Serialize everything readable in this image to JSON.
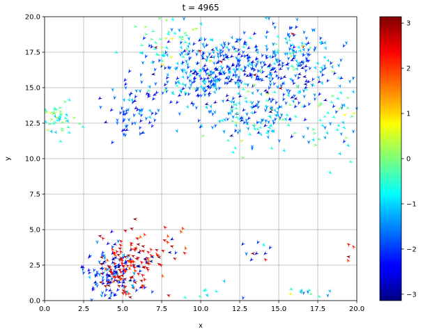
{
  "chart_data": {
    "type": "scatter",
    "title": "t = 4965",
    "xlabel": "x",
    "ylabel": "y",
    "xlim": [
      0,
      20
    ],
    "ylim": [
      0,
      20
    ],
    "grid": true,
    "x_ticks": [
      "0.0",
      "2.5",
      "5.0",
      "7.5",
      "10.0",
      "12.5",
      "15.0",
      "17.5",
      "20.0"
    ],
    "y_ticks": [
      "0.0",
      "2.5",
      "5.0",
      "7.5",
      "10.0",
      "12.5",
      "15.0",
      "17.5",
      "20.0"
    ],
    "colorbar": {
      "colormap": "jet",
      "range": [
        -3.14159,
        3.14159
      ],
      "ticks": [
        "−3",
        "−2",
        "−1",
        "0",
        "1",
        "2",
        "3"
      ],
      "tick_values": [
        -3,
        -2,
        -1,
        0,
        1,
        2,
        3
      ]
    },
    "clusters": [
      {
        "x": 0.9,
        "y": 12.8,
        "sx": 0.5,
        "sy": 0.6,
        "n": 45,
        "angle_mean": -0.4,
        "angle_spread": 0.6
      },
      {
        "x": 5.7,
        "y": 13.4,
        "sx": 0.7,
        "sy": 1.0,
        "n": 70,
        "angle_mean": -1.9,
        "angle_spread": 0.5
      },
      {
        "x": 11.2,
        "y": 16.0,
        "sx": 1.8,
        "sy": 1.3,
        "n": 300,
        "angle_mean": -1.8,
        "angle_spread": 0.6
      },
      {
        "x": 15.6,
        "y": 16.5,
        "sx": 1.6,
        "sy": 1.6,
        "n": 230,
        "angle_mean": -1.6,
        "angle_spread": 0.7
      },
      {
        "x": 13.8,
        "y": 12.8,
        "sx": 1.6,
        "sy": 1.0,
        "n": 120,
        "angle_mean": -1.1,
        "angle_spread": 0.8
      },
      {
        "x": 8.5,
        "y": 16.8,
        "sx": 1.5,
        "sy": 1.5,
        "n": 80,
        "angle_mean": -1.3,
        "angle_spread": 0.8
      },
      {
        "x": 18.8,
        "y": 13.0,
        "sx": 0.8,
        "sy": 1.5,
        "n": 45,
        "angle_mean": -1.0,
        "angle_spread": 0.7
      },
      {
        "x": 8.0,
        "y": 18.8,
        "sx": 1.0,
        "sy": 0.7,
        "n": 25,
        "angle_mean": -0.3,
        "angle_spread": 0.5
      },
      {
        "x": 4.5,
        "y": 1.9,
        "sx": 0.9,
        "sy": 0.9,
        "n": 150,
        "angle_mean": -2.1,
        "angle_spread": 0.7
      },
      {
        "x": 5.3,
        "y": 2.4,
        "sx": 1.0,
        "sy": 1.2,
        "n": 90,
        "angle_mean": 2.4,
        "angle_spread": 0.4
      },
      {
        "x": 7.3,
        "y": 3.6,
        "sx": 0.9,
        "sy": 0.8,
        "n": 35,
        "angle_mean": 2.5,
        "angle_spread": 0.6
      },
      {
        "x": 13.6,
        "y": 3.5,
        "sx": 0.5,
        "sy": 0.4,
        "n": 10,
        "angle_mean": -2.5,
        "angle_spread": 0.8
      },
      {
        "x": 16.8,
        "y": 0.4,
        "sx": 0.7,
        "sy": 0.3,
        "n": 12,
        "angle_mean": -0.8,
        "angle_spread": 0.5
      },
      {
        "x": 11.0,
        "y": 0.4,
        "sx": 1.0,
        "sy": 0.3,
        "n": 8,
        "angle_mean": -0.9,
        "angle_spread": 0.5
      },
      {
        "x": 19.6,
        "y": 3.5,
        "sx": 0.3,
        "sy": 0.6,
        "n": 5,
        "angle_mean": 2.4,
        "angle_spread": 0.3
      }
    ]
  }
}
